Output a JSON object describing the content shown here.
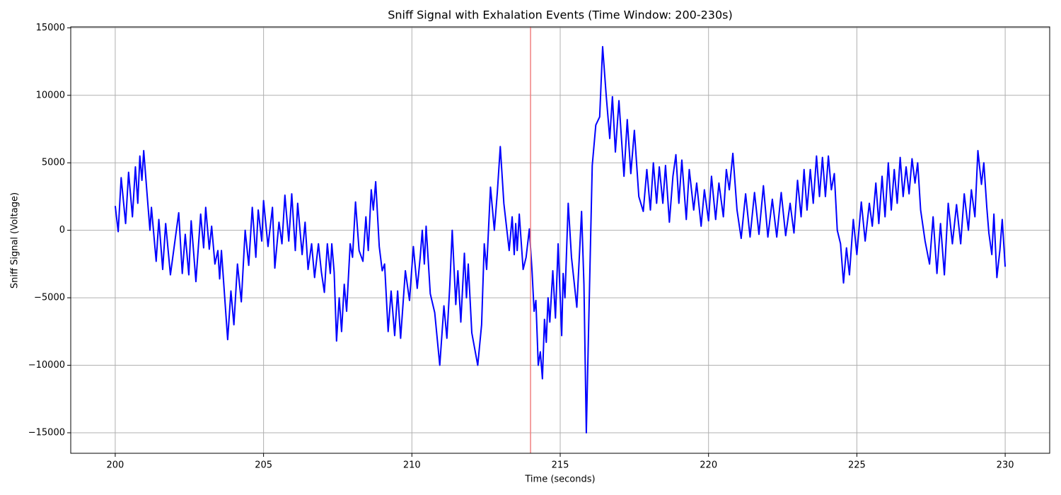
{
  "chart_data": {
    "type": "line",
    "title": "Sniff Signal with Exhalation Events (Time Window: 200-230s)",
    "xlabel": "Time (seconds)",
    "ylabel": "Sniff Signal (Voltage)",
    "x": [
      200.0,
      200.1,
      200.2,
      200.35,
      200.45,
      200.58,
      200.68,
      200.76,
      200.83,
      200.9,
      200.96,
      201.08,
      201.17,
      201.22,
      201.38,
      201.47,
      201.6,
      201.7,
      201.86,
      202.14,
      202.26,
      202.36,
      202.48,
      202.56,
      202.72,
      202.88,
      202.98,
      203.05,
      203.17,
      203.25,
      203.36,
      203.46,
      203.52,
      203.58,
      203.79,
      203.9,
      204.0,
      204.12,
      204.25,
      204.38,
      204.5,
      204.62,
      204.74,
      204.82,
      204.94,
      205.0,
      205.15,
      205.3,
      205.38,
      205.52,
      205.62,
      205.72,
      205.85,
      205.95,
      206.07,
      206.15,
      206.3,
      206.4,
      206.5,
      206.62,
      206.72,
      206.85,
      206.95,
      207.05,
      207.15,
      207.25,
      207.3,
      207.38,
      207.46,
      207.55,
      207.63,
      207.72,
      207.8,
      207.92,
      208.0,
      208.1,
      208.22,
      208.35,
      208.45,
      208.53,
      208.63,
      208.7,
      208.78,
      208.9,
      209.0,
      209.08,
      209.2,
      209.3,
      209.42,
      209.52,
      209.62,
      209.78,
      209.92,
      210.05,
      210.18,
      210.28,
      210.35,
      210.42,
      210.48,
      210.62,
      210.77,
      210.94,
      211.08,
      211.18,
      211.28,
      211.36,
      211.48,
      211.55,
      211.65,
      211.77,
      211.84,
      211.9,
      212.02,
      212.22,
      212.35,
      212.44,
      212.52,
      212.65,
      212.78,
      212.88,
      212.98,
      213.1,
      213.28,
      213.38,
      213.45,
      213.5,
      213.55,
      213.62,
      213.75,
      213.85,
      213.96,
      214.05,
      214.12,
      214.18,
      214.26,
      214.33,
      214.4,
      214.47,
      214.53,
      214.59,
      214.65,
      214.75,
      214.84,
      214.93,
      215.05,
      215.1,
      215.16,
      215.27,
      215.38,
      215.56,
      215.72,
      215.8,
      215.88,
      215.96,
      216.08,
      216.2,
      216.33,
      216.43,
      216.55,
      216.67,
      216.76,
      216.86,
      216.98,
      217.15,
      217.26,
      217.38,
      217.5,
      217.65,
      217.8,
      217.92,
      218.04,
      218.14,
      218.25,
      218.34,
      218.46,
      218.55,
      218.68,
      218.8,
      218.9,
      219.0,
      219.1,
      219.25,
      219.35,
      219.5,
      219.6,
      219.75,
      219.86,
      220.0,
      220.1,
      220.24,
      220.35,
      220.5,
      220.6,
      220.7,
      220.82,
      220.96,
      221.1,
      221.25,
      221.4,
      221.55,
      221.7,
      221.85,
      222.0,
      222.15,
      222.3,
      222.45,
      222.6,
      222.75,
      222.88,
      223.0,
      223.12,
      223.22,
      223.32,
      223.43,
      223.53,
      223.64,
      223.74,
      223.84,
      223.94,
      224.04,
      224.14,
      224.24,
      224.34,
      224.45,
      224.55,
      224.65,
      224.75,
      224.88,
      225.0,
      225.15,
      225.28,
      225.42,
      225.52,
      225.64,
      225.74,
      225.85,
      225.95,
      226.06,
      226.16,
      226.26,
      226.36,
      226.46,
      226.56,
      226.66,
      226.76,
      226.86,
      226.96,
      227.05,
      227.15,
      227.3,
      227.45,
      227.57,
      227.7,
      227.82,
      227.95,
      228.08,
      228.22,
      228.36,
      228.5,
      228.62,
      228.76,
      228.86,
      228.98,
      229.08,
      229.2,
      229.28,
      229.38,
      229.45,
      229.55,
      229.62,
      229.72,
      229.82,
      229.9,
      230.0
    ],
    "series": [
      {
        "color": "#0000ff",
        "values": [
          1800,
          -100,
          3900,
          500,
          4300,
          1000,
          4700,
          2000,
          5500,
          3700,
          5900,
          2500,
          0,
          1700,
          -2300,
          800,
          -2900,
          500,
          -3300,
          1300,
          -3200,
          -300,
          -3300,
          700,
          -3800,
          1200,
          -1300,
          1700,
          -1400,
          300,
          -2500,
          -1500,
          -3600,
          -1500,
          -8100,
          -4500,
          -7000,
          -2500,
          -5300,
          0,
          -2600,
          1700,
          -2000,
          1500,
          -800,
          2200,
          -1200,
          1700,
          -2800,
          600,
          -1000,
          2600,
          -800,
          2700,
          -1500,
          2000,
          -1800,
          600,
          -2900,
          -1000,
          -3500,
          -1000,
          -3100,
          -4600,
          -1000,
          -3200,
          -1000,
          -3100,
          -8200,
          -5000,
          -7500,
          -4000,
          -6000,
          -1000,
          -2000,
          2100,
          -1500,
          -2300,
          1000,
          -1500,
          3000,
          1500,
          3600,
          -1200,
          -3000,
          -2500,
          -7500,
          -4500,
          -7800,
          -4500,
          -8000,
          -3000,
          -5200,
          -1200,
          -4300,
          -2000,
          0,
          -2500,
          300,
          -4700,
          -6100,
          -10000,
          -5600,
          -8000,
          -4000,
          0,
          -5500,
          -3000,
          -6800,
          -1700,
          -5000,
          -2500,
          -7600,
          -10000,
          -7000,
          -1000,
          -2900,
          3200,
          0,
          2800,
          6200,
          2000,
          -1500,
          1000,
          -1800,
          500,
          -1500,
          1200,
          -2900,
          -2000,
          100,
          -3000,
          -6000,
          -5200,
          -10000,
          -9000,
          -11000,
          -6600,
          -8300,
          -5000,
          -6800,
          -3000,
          -6500,
          -1000,
          -7800,
          -3200,
          -5000,
          2000,
          -2000,
          -5700,
          1400,
          -4000,
          -15000,
          -7000,
          4800,
          7800,
          8400,
          13600,
          10000,
          6800,
          9900,
          5800,
          9600,
          4000,
          8200,
          4200,
          7400,
          2500,
          1400,
          4500,
          1500,
          5000,
          2000,
          4700,
          2000,
          4800,
          600,
          4000,
          5600,
          2000,
          5200,
          800,
          4500,
          1500,
          3500,
          300,
          3000,
          700,
          4000,
          800,
          3500,
          1000,
          4500,
          3000,
          5700,
          1500,
          -600,
          2700,
          -500,
          2800,
          -300,
          3300,
          -500,
          2300,
          -500,
          2800,
          -400,
          2000,
          -200,
          3700,
          1000,
          4500,
          1500,
          4500,
          2000,
          5500,
          2500,
          5400,
          2500,
          5500,
          3000,
          4200,
          0,
          -1000,
          -3900,
          -1300,
          -3300,
          800,
          -1800,
          2100,
          -800,
          2000,
          300,
          3500,
          500,
          4000,
          1000,
          5000,
          1500,
          4500,
          2000,
          5400,
          2500,
          4700,
          2700,
          5300,
          3500,
          5000,
          1500,
          -800,
          -2500,
          1000,
          -3200,
          500,
          -3300,
          2000,
          -1000,
          1900,
          -1000,
          2700,
          0,
          3000,
          1000,
          5900,
          3400,
          5000,
          1700,
          -200,
          -1800,
          1200,
          -3500,
          -1500,
          800,
          -2700
        ]
      }
    ],
    "events": [
      214
    ],
    "event_color": "#f08080",
    "xlim": [
      198.5,
      231.5
    ],
    "ylim": [
      -16520,
      15070
    ],
    "xticks": [
      200,
      205,
      210,
      215,
      220,
      225,
      230
    ],
    "yticks": [
      {
        "value": -15000,
        "label": "−15000"
      },
      {
        "value": -10000,
        "label": "−10000"
      },
      {
        "value": -5000,
        "label": "−5000"
      },
      0,
      5000,
      10000,
      15000
    ],
    "grid": true
  }
}
